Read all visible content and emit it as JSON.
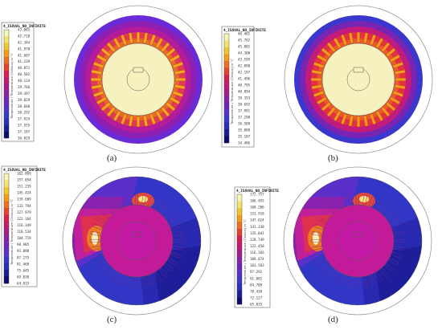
{
  "colorbar_title": "4_ISOVAL_NO_INFINITE",
  "colorbar_unit": "Temperature / Temperature (Celsius) in °C",
  "scale_colors": [
    "#f6f6b4",
    "#f4e36a",
    "#f2c72a",
    "#f29f14",
    "#ee701e",
    "#e8432a",
    "#da1f4c",
    "#c51a6e",
    "#a81d8c",
    "#8b21a4",
    "#7126b9",
    "#5930c8",
    "#3b36cc",
    "#2830b8",
    "#1a1e94",
    "#0c0c6a"
  ],
  "panels": [
    {
      "caption": "(a)",
      "values": [
        "43.082",
        "42.718",
        "42.344",
        "41.970",
        "41.607",
        "41.239",
        "40.871",
        "40.502",
        "40.134",
        "39.766",
        "39.397",
        "39.029",
        "38.660",
        "38.292",
        "37.924",
        "37.555",
        "37.187",
        "36.819"
      ]
    },
    {
      "caption": "(b)",
      "values": [
        "46.401",
        "45.702",
        "45.001",
        "44.300",
        "43.599",
        "42.898",
        "42.197",
        "41.496",
        "40.795",
        "40.094",
        "39.393",
        "38.692",
        "37.991",
        "37.290",
        "36.589",
        "35.888",
        "35.187",
        "34.486"
      ]
    },
    {
      "caption": "(c)",
      "values": [
        "162.869",
        "157.054",
        "151.239",
        "145.424",
        "139.609",
        "133.794",
        "127.979",
        "122.164",
        "116.349",
        "110.534",
        "104.719",
        "98.905",
        "93.090",
        "87.275",
        "81.460",
        "75.645",
        "69.830",
        "64.015"
      ]
    },
    {
      "caption": "(d)",
      "values": [
        "172.757",
        "166.493",
        "160.206",
        "153.918",
        "147.624",
        "141.330",
        "135.041",
        "128.749",
        "122.458",
        "116.166",
        "109.874",
        "103.583",
        "97.291",
        "91.001",
        "84.709",
        "78.418",
        "72.127",
        "65.835"
      ]
    }
  ]
}
